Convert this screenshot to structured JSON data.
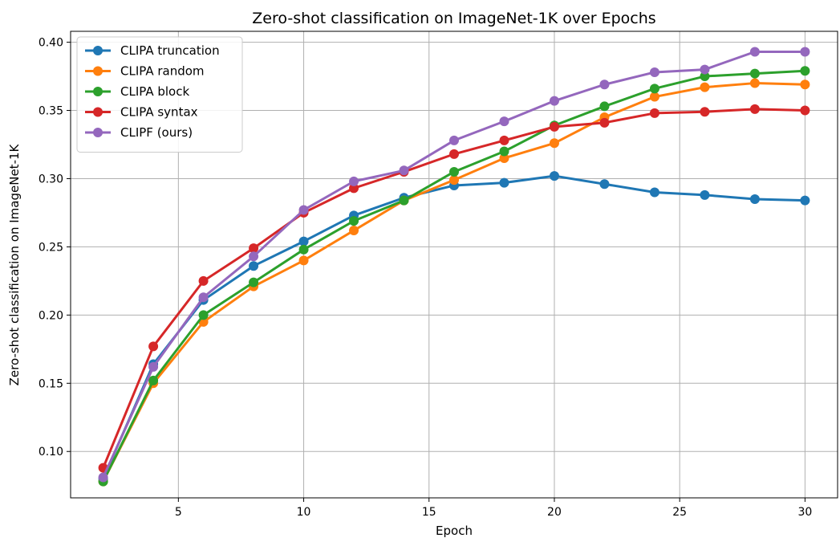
{
  "chart_data": {
    "type": "line",
    "title": "Zero-shot classification on ImageNet-1K over Epochs",
    "xlabel": "Epoch",
    "ylabel": "Zero-shot classification on ImageNet-1K",
    "xlim": [
      0.7,
      31.3
    ],
    "ylim": [
      0.066,
      0.408
    ],
    "xticks": [
      5,
      10,
      15,
      20,
      25,
      30
    ],
    "yticks": [
      0.1,
      0.15,
      0.2,
      0.25,
      0.3,
      0.35,
      0.4
    ],
    "ytick_labels": [
      "0.10",
      "0.15",
      "0.20",
      "0.25",
      "0.30",
      "0.35",
      "0.40"
    ],
    "grid": true,
    "legend_position": "top-left",
    "x": [
      2,
      4,
      6,
      8,
      10,
      12,
      14,
      16,
      18,
      20,
      22,
      24,
      26,
      28,
      30
    ],
    "series": [
      {
        "name": "CLIPA truncation",
        "color": "#1f77b4",
        "values": [
          0.08,
          0.164,
          0.211,
          0.236,
          0.254,
          0.273,
          0.286,
          0.295,
          0.297,
          0.302,
          0.296,
          0.29,
          0.288,
          0.285,
          0.284
        ]
      },
      {
        "name": "CLIPA random",
        "color": "#ff7f0e",
        "values": [
          0.078,
          0.15,
          0.195,
          0.221,
          0.24,
          0.262,
          0.284,
          0.299,
          0.315,
          0.326,
          0.345,
          0.36,
          0.367,
          0.37,
          0.369
        ]
      },
      {
        "name": "CLIPA block",
        "color": "#2ca02c",
        "values": [
          0.078,
          0.152,
          0.2,
          0.224,
          0.248,
          0.269,
          0.284,
          0.305,
          0.32,
          0.339,
          0.353,
          0.366,
          0.375,
          0.377,
          0.379
        ]
      },
      {
        "name": "CLIPA syntax",
        "color": "#d62728",
        "values": [
          0.088,
          0.177,
          0.225,
          0.249,
          0.275,
          0.293,
          0.305,
          0.318,
          0.328,
          0.338,
          0.341,
          0.348,
          0.349,
          0.351,
          0.35
        ]
      },
      {
        "name": "CLIPF (ours)",
        "color": "#9467bd",
        "values": [
          0.081,
          0.162,
          0.213,
          0.243,
          0.277,
          0.298,
          0.306,
          0.328,
          0.342,
          0.357,
          0.369,
          0.378,
          0.38,
          0.393,
          0.393
        ]
      }
    ]
  }
}
